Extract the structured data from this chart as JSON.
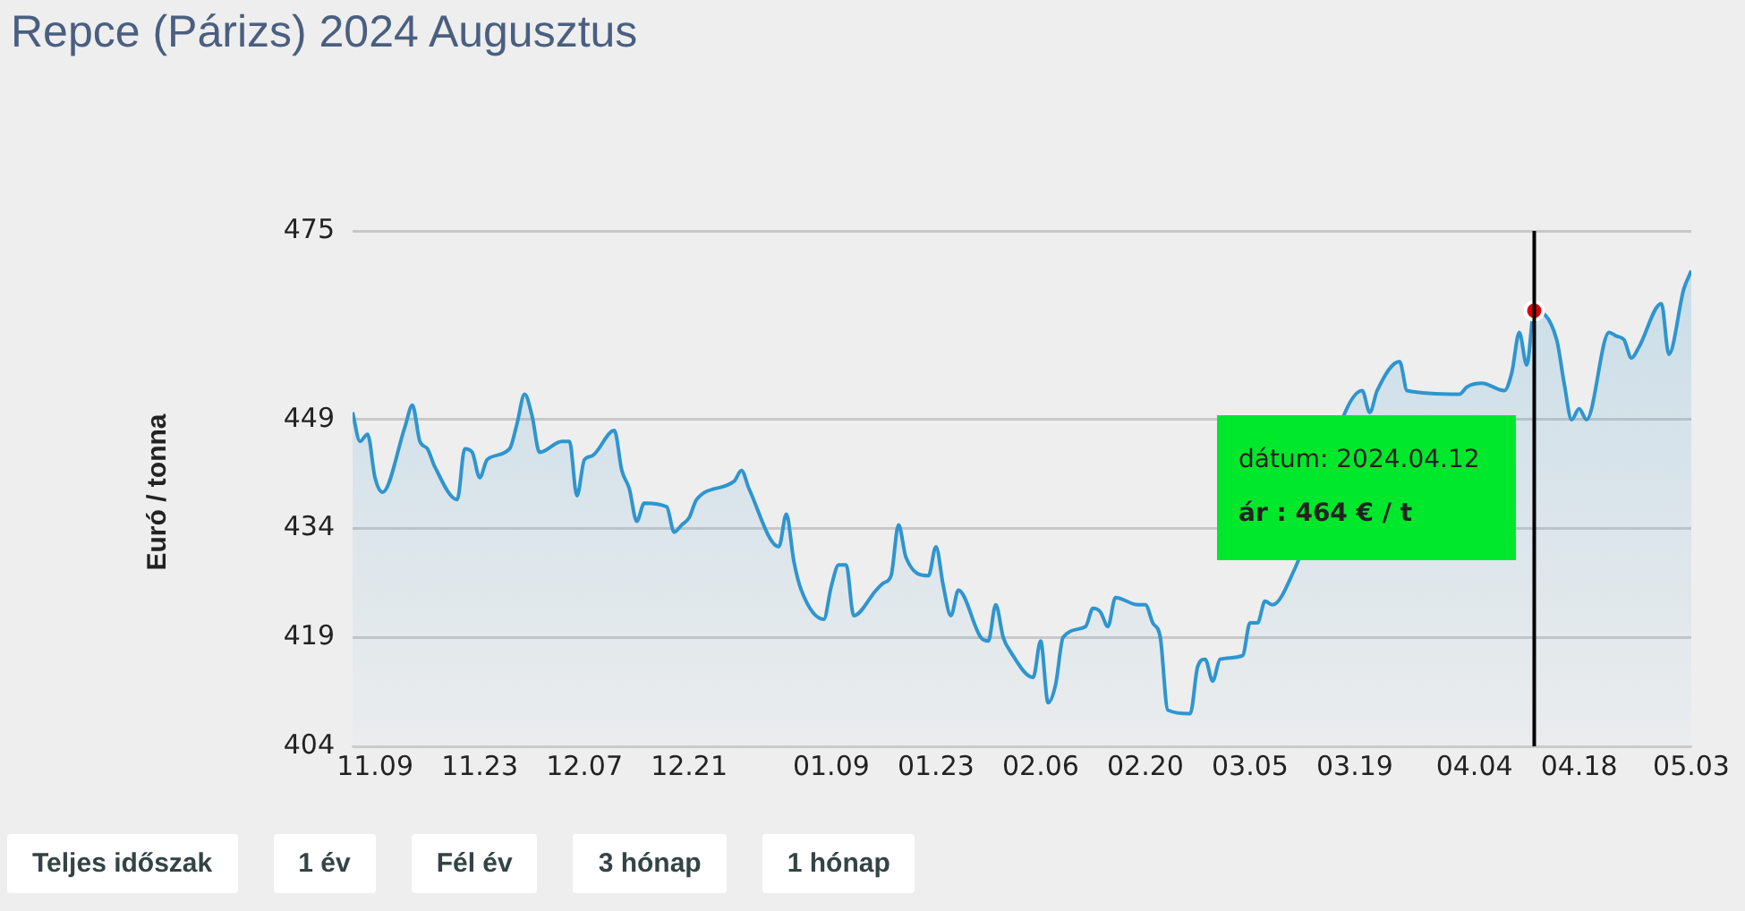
{
  "chart_data": {
    "type": "area",
    "title": "Repce (Párizs) 2024 Augusztus",
    "ylabel": "Euró / tonna",
    "xlim": [
      "2023-11-06",
      "2024-05-03"
    ],
    "xticks": [
      {
        "value": "2023-11-09",
        "label": "11.09"
      },
      {
        "value": "2023-11-23",
        "label": "11.23"
      },
      {
        "value": "2023-12-07",
        "label": "12.07"
      },
      {
        "value": "2023-12-21",
        "label": "12.21"
      },
      {
        "value": "2024-01-09",
        "label": "01.09"
      },
      {
        "value": "2024-01-23",
        "label": "01.23"
      },
      {
        "value": "2024-02-06",
        "label": "02.06"
      },
      {
        "value": "2024-02-20",
        "label": "02.20"
      },
      {
        "value": "2024-03-05",
        "label": "03.05"
      },
      {
        "value": "2024-03-19",
        "label": "03.19"
      },
      {
        "value": "2024-04-04",
        "label": "04.04"
      },
      {
        "value": "2024-04-18",
        "label": "04.18"
      },
      {
        "value": "2024-05-03",
        "label": "05.03"
      }
    ],
    "ylim": [
      404,
      475
    ],
    "yticks": [
      404,
      419,
      434,
      449,
      475
    ],
    "grid": "y",
    "legend": false,
    "marker": "none",
    "series": [
      {
        "color": "#2e95cf",
        "x": [
          "2023-11-06",
          "2023-11-07",
          "2023-11-08",
          "2023-11-09",
          "2023-11-10",
          "2023-11-13",
          "2023-11-14",
          "2023-11-15",
          "2023-11-16",
          "2023-11-17",
          "2023-11-20",
          "2023-11-21",
          "2023-11-22",
          "2023-11-23",
          "2023-11-24",
          "2023-11-27",
          "2023-11-28",
          "2023-11-29",
          "2023-11-30",
          "2023-12-01",
          "2023-12-04",
          "2023-12-05",
          "2023-12-06",
          "2023-12-07",
          "2023-12-08",
          "2023-12-11",
          "2023-12-12",
          "2023-12-13",
          "2023-12-14",
          "2023-12-15",
          "2023-12-18",
          "2023-12-19",
          "2023-12-20",
          "2023-12-21",
          "2023-12-22",
          "2023-12-27",
          "2023-12-28",
          "2023-12-29",
          "2024-01-02",
          "2024-01-03",
          "2024-01-04",
          "2024-01-05",
          "2024-01-08",
          "2024-01-09",
          "2024-01-10",
          "2024-01-11",
          "2024-01-12",
          "2024-01-15",
          "2024-01-16",
          "2024-01-17",
          "2024-01-18",
          "2024-01-19",
          "2024-01-22",
          "2024-01-23",
          "2024-01-24",
          "2024-01-25",
          "2024-01-26",
          "2024-01-29",
          "2024-01-30",
          "2024-01-31",
          "2024-02-01",
          "2024-02-02",
          "2024-02-05",
          "2024-02-06",
          "2024-02-07",
          "2024-02-08",
          "2024-02-09",
          "2024-02-12",
          "2024-02-13",
          "2024-02-14",
          "2024-02-15",
          "2024-02-16",
          "2024-02-19",
          "2024-02-20",
          "2024-02-21",
          "2024-02-22",
          "2024-02-23",
          "2024-02-26",
          "2024-02-27",
          "2024-02-28",
          "2024-02-29",
          "2024-03-01",
          "2024-03-04",
          "2024-03-05",
          "2024-03-06",
          "2024-03-07",
          "2024-03-08",
          "2024-03-11",
          "2024-03-20",
          "2024-03-21",
          "2024-03-22",
          "2024-03-25",
          "2024-03-26",
          "2024-04-02",
          "2024-04-03",
          "2024-04-05",
          "2024-04-08",
          "2024-04-09",
          "2024-04-10",
          "2024-04-11",
          "2024-04-12",
          "2024-04-15",
          "2024-04-16",
          "2024-04-17",
          "2024-04-18",
          "2024-04-19",
          "2024-04-22",
          "2024-04-23",
          "2024-04-24",
          "2024-04-25",
          "2024-04-26",
          "2024-04-29",
          "2024-04-30",
          "2024-05-02",
          "2024-05-03"
        ],
        "values": [
          450,
          446,
          447,
          441,
          439,
          448,
          451,
          446,
          445,
          442.5,
          438,
          445,
          444.5,
          441,
          443.5,
          445,
          448.5,
          452.5,
          449.5,
          444.5,
          446,
          446,
          438.5,
          443.5,
          444,
          447.5,
          442,
          439.5,
          435,
          437.5,
          437,
          433.5,
          434.5,
          435.5,
          438,
          440.5,
          442,
          439.5,
          431.5,
          436,
          429.5,
          425.5,
          421.5,
          426,
          429,
          429,
          422,
          425.5,
          426.5,
          427.5,
          434.5,
          430,
          427.5,
          431.5,
          426,
          422,
          425.5,
          419,
          418.5,
          423.5,
          419,
          417,
          413.5,
          418.5,
          410,
          412.5,
          419,
          420.5,
          423,
          422.5,
          420.5,
          424.5,
          423.5,
          423.5,
          421,
          419,
          409,
          408.5,
          415,
          416,
          413,
          416,
          416.5,
          421,
          421,
          424,
          423.5,
          428.5,
          453,
          450,
          453,
          457,
          453,
          452.5,
          453.5,
          454,
          453,
          455.5,
          461,
          456.5,
          464,
          460,
          454,
          449,
          450.5,
          449,
          461,
          460.5,
          460,
          457.5,
          459,
          465,
          458,
          467,
          469.5
        ]
      },
      {
        "type": "scatter",
        "marker": "circle",
        "color": "#e00000",
        "x": [
          "2024-04-12"
        ],
        "values": [
          464
        ]
      }
    ],
    "ref_lines": [
      {
        "axis": "x",
        "value": "2024-04-12",
        "color": "#000000"
      }
    ],
    "annotations": [
      "dátum: 2024.04.12",
      "ár : 464 € / t",
      "Teljes időszak",
      "1 év",
      "Fél év",
      "3 hónap",
      "1 hónap"
    ]
  }
}
